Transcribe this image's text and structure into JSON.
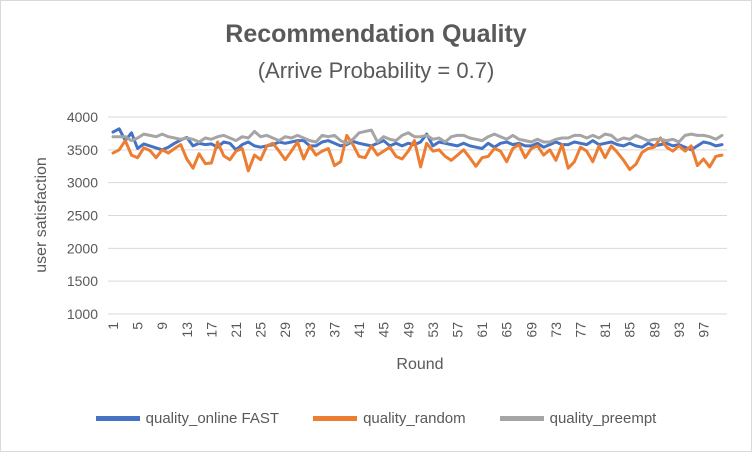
{
  "chart_data": {
    "type": "line",
    "title": "Recommendation Quality",
    "subtitle": "(Arrive Probability = 0.7)",
    "xlabel": "Round",
    "ylabel": "user satisfaction",
    "ylim": [
      1000,
      4000
    ],
    "yticks": [
      1000,
      1500,
      2000,
      2500,
      3000,
      3500,
      4000
    ],
    "x": [
      1,
      2,
      3,
      4,
      5,
      6,
      7,
      8,
      9,
      10,
      11,
      12,
      13,
      14,
      15,
      16,
      17,
      18,
      19,
      20,
      21,
      22,
      23,
      24,
      25,
      26,
      27,
      28,
      29,
      30,
      31,
      32,
      33,
      34,
      35,
      36,
      37,
      38,
      39,
      40,
      41,
      42,
      43,
      44,
      45,
      46,
      47,
      48,
      49,
      50,
      51,
      52,
      53,
      54,
      55,
      56,
      57,
      58,
      59,
      60,
      61,
      62,
      63,
      64,
      65,
      66,
      67,
      68,
      69,
      70,
      71,
      72,
      73,
      74,
      75,
      76,
      77,
      78,
      79,
      80,
      81,
      82,
      83,
      84,
      85,
      86,
      87,
      88,
      89,
      90,
      91,
      92,
      93,
      94,
      95,
      96,
      97,
      98,
      99,
      100
    ],
    "xtick_labels": [
      "1",
      "5",
      "9",
      "13",
      "17",
      "21",
      "25",
      "29",
      "33",
      "37",
      "41",
      "45",
      "49",
      "53",
      "57",
      "61",
      "65",
      "69",
      "73",
      "77",
      "81",
      "85",
      "89",
      "93",
      "97"
    ],
    "grid": true,
    "legend_position": "bottom",
    "series": [
      {
        "name": "quality_online FAST",
        "color": "#4472C4",
        "values": [
          3770,
          3820,
          3640,
          3760,
          3520,
          3590,
          3560,
          3530,
          3500,
          3540,
          3600,
          3650,
          3690,
          3560,
          3600,
          3580,
          3590,
          3540,
          3620,
          3600,
          3500,
          3580,
          3620,
          3560,
          3540,
          3560,
          3580,
          3620,
          3600,
          3620,
          3640,
          3640,
          3560,
          3560,
          3620,
          3640,
          3600,
          3560,
          3580,
          3630,
          3600,
          3580,
          3560,
          3600,
          3640,
          3560,
          3600,
          3560,
          3600,
          3580,
          3620,
          3740,
          3560,
          3620,
          3600,
          3580,
          3560,
          3600,
          3560,
          3540,
          3520,
          3600,
          3540,
          3600,
          3620,
          3580,
          3600,
          3560,
          3560,
          3600,
          3540,
          3580,
          3620,
          3580,
          3580,
          3620,
          3600,
          3580,
          3640,
          3580,
          3600,
          3620,
          3580,
          3560,
          3600,
          3560,
          3540,
          3600,
          3560,
          3580,
          3600,
          3560,
          3580,
          3540,
          3500,
          3560,
          3620,
          3600,
          3560,
          3580
        ]
      },
      {
        "name": "quality_random",
        "color": "#ED7D31",
        "values": [
          3450,
          3500,
          3640,
          3420,
          3380,
          3530,
          3490,
          3380,
          3500,
          3450,
          3520,
          3580,
          3360,
          3220,
          3440,
          3290,
          3300,
          3620,
          3410,
          3350,
          3480,
          3520,
          3180,
          3420,
          3350,
          3560,
          3600,
          3480,
          3350,
          3480,
          3620,
          3360,
          3560,
          3420,
          3480,
          3520,
          3260,
          3320,
          3720,
          3580,
          3400,
          3380,
          3560,
          3420,
          3480,
          3540,
          3400,
          3360,
          3480,
          3640,
          3240,
          3600,
          3480,
          3500,
          3400,
          3340,
          3420,
          3500,
          3380,
          3250,
          3380,
          3400,
          3520,
          3480,
          3320,
          3520,
          3580,
          3380,
          3520,
          3560,
          3420,
          3500,
          3340,
          3580,
          3220,
          3320,
          3540,
          3480,
          3320,
          3560,
          3380,
          3560,
          3460,
          3340,
          3200,
          3280,
          3460,
          3520,
          3540,
          3680,
          3540,
          3480,
          3560,
          3480,
          3560,
          3260,
          3360,
          3240,
          3400,
          3420
        ]
      },
      {
        "name": "quality_preempt",
        "color": "#A5A5A5",
        "values": [
          3700,
          3700,
          3700,
          3640,
          3680,
          3740,
          3720,
          3700,
          3740,
          3700,
          3680,
          3660,
          3680,
          3660,
          3620,
          3680,
          3660,
          3700,
          3720,
          3680,
          3640,
          3700,
          3680,
          3780,
          3700,
          3720,
          3680,
          3640,
          3700,
          3680,
          3720,
          3680,
          3640,
          3620,
          3720,
          3700,
          3720,
          3640,
          3600,
          3660,
          3760,
          3780,
          3800,
          3620,
          3700,
          3660,
          3640,
          3720,
          3760,
          3700,
          3700,
          3720,
          3660,
          3680,
          3620,
          3700,
          3720,
          3720,
          3680,
          3660,
          3640,
          3700,
          3740,
          3700,
          3660,
          3720,
          3660,
          3640,
          3620,
          3660,
          3620,
          3620,
          3660,
          3680,
          3680,
          3720,
          3720,
          3680,
          3720,
          3680,
          3740,
          3720,
          3640,
          3680,
          3660,
          3720,
          3680,
          3640,
          3660,
          3660,
          3640,
          3660,
          3620,
          3720,
          3740,
          3720,
          3720,
          3700,
          3660,
          3720
        ]
      }
    ]
  }
}
